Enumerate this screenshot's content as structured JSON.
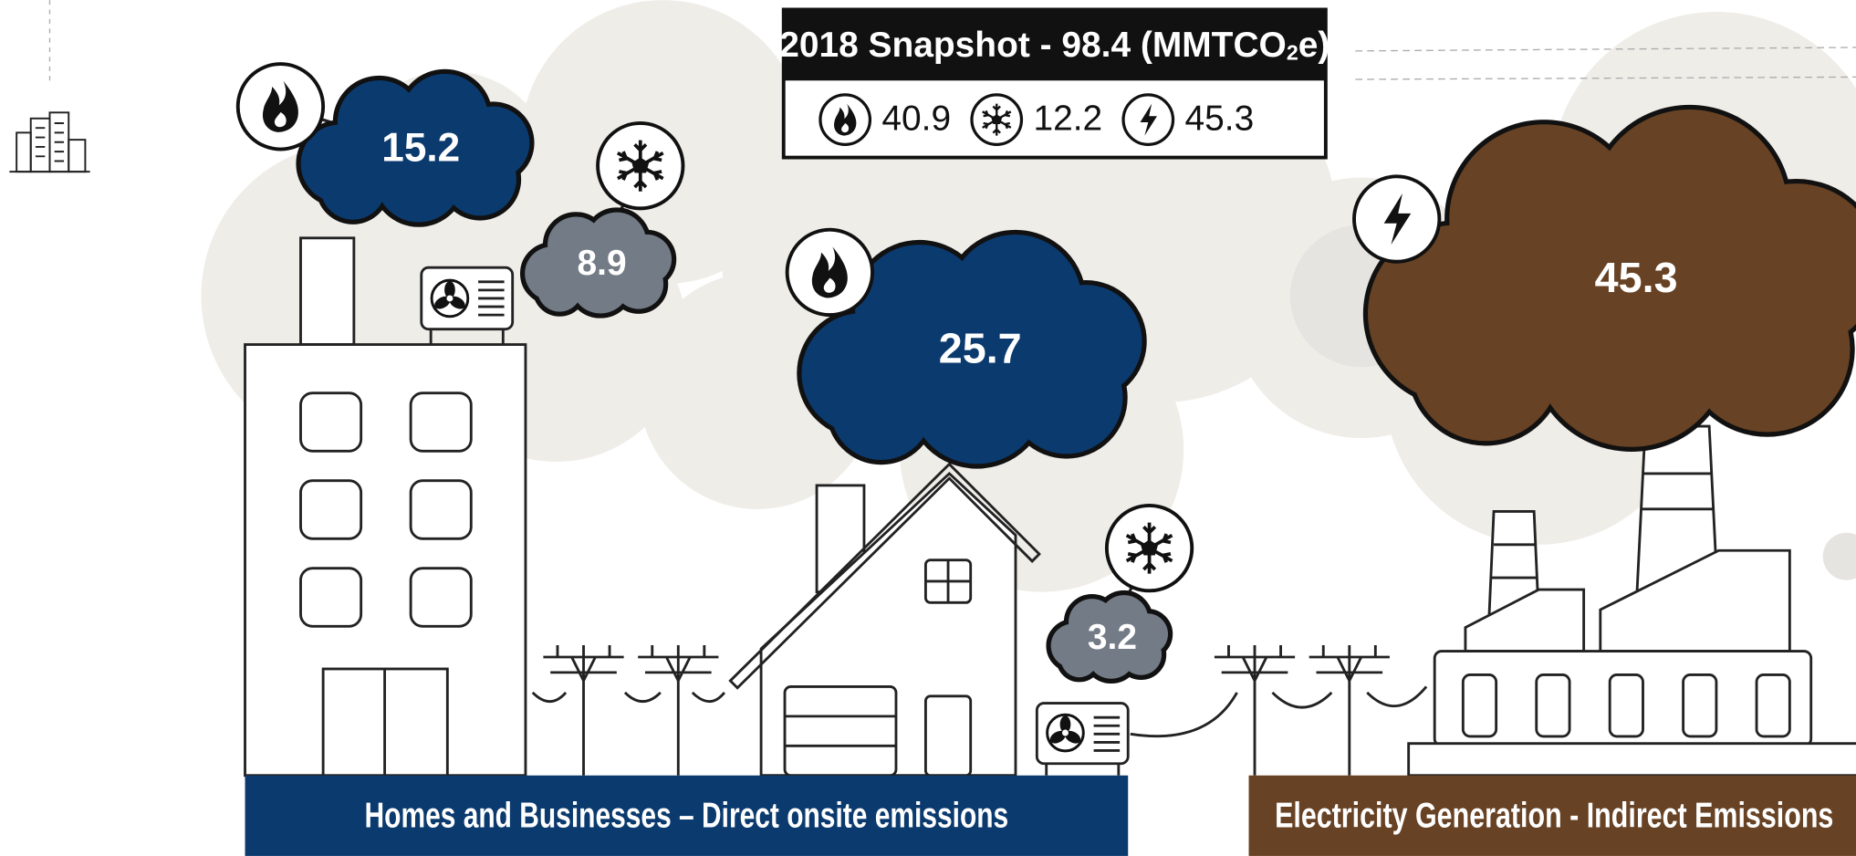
{
  "snapshot": {
    "title": "2018 Snapshot - 98.4 (MMTCO",
    "title_sub": "2",
    "title_end": "e)",
    "values": [
      "40.9",
      "12.2",
      "45.3"
    ]
  },
  "clouds": [
    "15.2",
    "8.9",
    "25.7",
    "3.2",
    "45.3"
  ],
  "banners": [
    "Homes and Businesses – Direct onsite emissions",
    "Electricity Generation - Indirect Emissions"
  ]
}
